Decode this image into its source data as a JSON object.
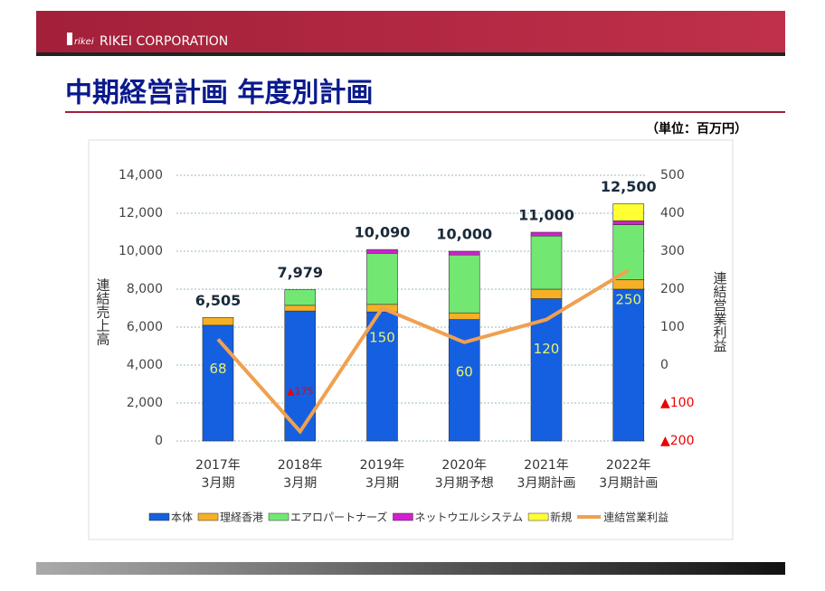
{
  "header": {
    "logo": "rikei",
    "company": "RIKEI CORPORATION"
  },
  "title": "中期経営計画 年度別計画",
  "unit": "（単位：百万円）",
  "chart_data": {
    "type": "bar",
    "stacked": true,
    "categories": [
      [
        "2017年",
        "3月期"
      ],
      [
        "2018年",
        "3月期"
      ],
      [
        "2019年",
        "3月期"
      ],
      [
        "2020年",
        "3月期予想"
      ],
      [
        "2021年",
        "3月期計画"
      ],
      [
        "2022年",
        "3月期計画"
      ]
    ],
    "ylabel": "連結売上高",
    "y2label": "連結営業利益",
    "ylim": [
      0,
      14000
    ],
    "yticks": [
      0,
      {
        "value": 2000,
        "label": "2,000"
      },
      {
        "value": 4000,
        "label": "4,000"
      },
      {
        "value": 6000,
        "label": "6,000"
      },
      {
        "value": 8000,
        "label": "8,000"
      },
      {
        "value": 10000,
        "label": "10,000"
      },
      {
        "value": 12000,
        "label": "12,000"
      },
      {
        "value": 14000,
        "label": "14,000"
      }
    ],
    "y2lim": [
      -200,
      500
    ],
    "y2ticks": [
      {
        "value": -200,
        "label": "▲200"
      },
      {
        "value": -100,
        "label": "▲100"
      },
      0,
      100,
      200,
      300,
      400,
      500
    ],
    "grid": true,
    "series": [
      {
        "name": "本体",
        "color": "#1560e0",
        "values": [
          6100,
          6850,
          6800,
          6400,
          7500,
          8000
        ]
      },
      {
        "name": "理経香港",
        "color": "#f5b025",
        "values": [
          405,
          300,
          400,
          350,
          500,
          500
        ]
      },
      {
        "name": "エアロパートナーズ",
        "color": "#72e872",
        "values": [
          0,
          829,
          2690,
          3050,
          2800,
          2900
        ]
      },
      {
        "name": "ネットウエルシステム",
        "color": "#d020d0",
        "values": [
          0,
          0,
          200,
          200,
          200,
          200
        ]
      },
      {
        "name": "新規",
        "color": "#ffff33",
        "values": [
          0,
          0,
          0,
          0,
          0,
          900
        ]
      },
      {
        "name": "連結営業利益",
        "type": "line",
        "axis": "y2",
        "color": "#f0a050",
        "values": [
          68,
          -175,
          150,
          60,
          120,
          250
        ],
        "value_labels": [
          "68",
          "▲175",
          "150",
          "60",
          "120",
          "250"
        ]
      }
    ],
    "totals": [
      6505,
      7979,
      10090,
      10000,
      11000,
      12500
    ],
    "total_labels": [
      "6,505",
      "7,979",
      "10,090",
      "10,000",
      "11,000",
      "12,500"
    ]
  }
}
